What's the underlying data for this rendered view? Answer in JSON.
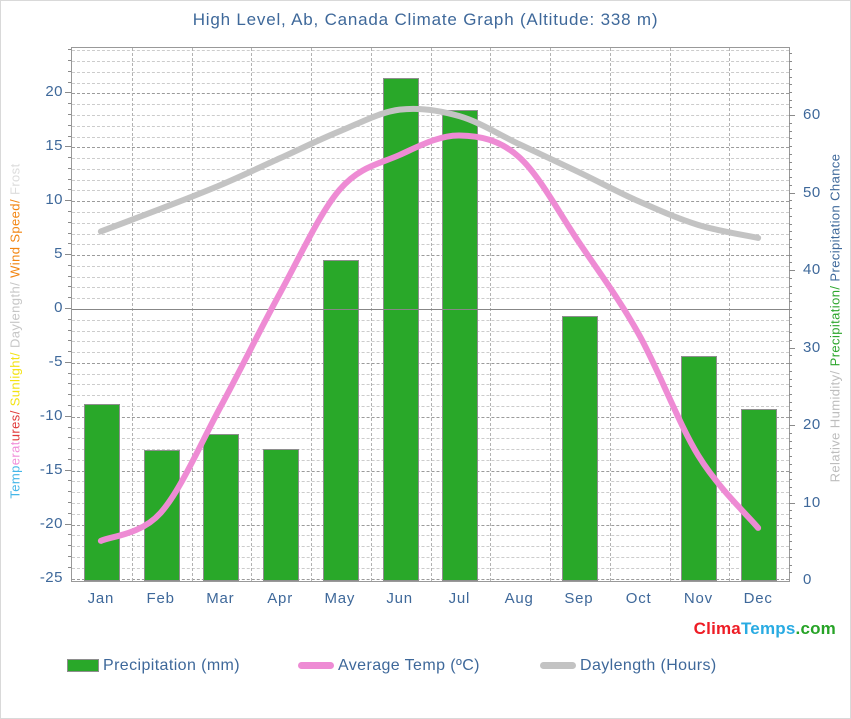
{
  "title": "High Level, Ab, Canada Climate Graph (Altitude: 338 m)",
  "colors": {
    "text_blue": "#3e689a",
    "bar_green": "#29a829",
    "temp_pink": "#ee8bd4",
    "daylength_gray": "#c3c3c3",
    "grid_minor": "#cccccc",
    "grid_major": "#9b9b9b",
    "zero_line": "#878787"
  },
  "left_axis": {
    "ticks": [
      20,
      15,
      10,
      5,
      0,
      -5,
      -10,
      -15,
      -20,
      -25
    ],
    "label_segments": [
      {
        "text": "Temp",
        "color": "#45b6e8"
      },
      {
        "text": "erat",
        "color": "#f18fd9"
      },
      {
        "text": "ures",
        "color": "#e03a3a"
      },
      {
        "text": "/ ",
        "color": "#e03a3a"
      },
      {
        "text": "Sunlight",
        "color": "#f3e312"
      },
      {
        "text": "/ ",
        "color": "#f3e312"
      },
      {
        "text": "Daylength",
        "color": "#c6c6c6"
      },
      {
        "text": "/ ",
        "color": "#c6c6c6"
      },
      {
        "text": "Wind Speed",
        "color": "#f28511"
      },
      {
        "text": "/ ",
        "color": "#f28511"
      },
      {
        "text": "Frost",
        "color": "#dcdcdc"
      }
    ]
  },
  "right_axis": {
    "ticks": [
      0,
      10,
      20,
      30,
      40,
      50,
      60
    ],
    "label_segments": [
      {
        "text": "Relative Humidity",
        "color": "#bdbdbd"
      },
      {
        "text": "/ ",
        "color": "#bdbdbd"
      },
      {
        "text": "Precipitation",
        "color": "#2ca62c"
      },
      {
        "text": "/ ",
        "color": "#2ca62c"
      },
      {
        "text": "Precipitation Chance",
        "color": "#3e689a"
      }
    ]
  },
  "chart_data": {
    "type": "bar",
    "categories": [
      "Jan",
      "Feb",
      "Mar",
      "Apr",
      "May",
      "Jun",
      "Jul",
      "Aug",
      "Sep",
      "Oct",
      "Nov",
      "Dec"
    ],
    "series": [
      {
        "name": "Precipitation (mm)",
        "type": "bar",
        "axis": "right",
        "color": "#29a829",
        "values": [
          22.8,
          16.9,
          19.0,
          17.0,
          41.4,
          65.0,
          60.8,
          0,
          34.2,
          0,
          29.1,
          22.2
        ]
      },
      {
        "name": "Average Temp (ºC)",
        "type": "line",
        "axis": "left",
        "color": "#ee8bd4",
        "values": [
          -21.6,
          -19.0,
          -9.2,
          1.4,
          11.0,
          14.2,
          16.0,
          14.0,
          6.1,
          -2.4,
          -13.7,
          -20.4
        ]
      },
      {
        "name": "Daylength (Hours)",
        "type": "line",
        "axis": "left",
        "color": "#c3c3c3",
        "values": [
          7.1,
          9.2,
          11.4,
          13.9,
          16.4,
          18.4,
          17.8,
          15.2,
          12.6,
          9.9,
          7.7,
          6.5
        ]
      }
    ],
    "title": "High Level, Ab, Canada Climate Graph (Altitude: 338 m)",
    "left_axis_label": "Temperatures/ Sunlight/ Daylength/ Wind Speed/ Frost",
    "right_axis_label": "Relative Humidity/ Precipitation/ Precipitation Chance",
    "left_ylim": [
      -25,
      24.3
    ],
    "right_ylim": [
      0,
      68.8
    ],
    "grid": true,
    "legend_position": "bottom"
  },
  "legend": [
    {
      "label": "Precipitation (mm)",
      "swatch": "bar",
      "color": "#29a829"
    },
    {
      "label": "Average Temp (ºC)",
      "swatch": "line",
      "color": "#ee8bd4"
    },
    {
      "label": "Daylength (Hours)",
      "swatch": "line",
      "color": "#c3c3c3"
    }
  ],
  "watermark": {
    "clima": "Clima",
    "clima_color": "#ee1c25",
    "temps": "Temps",
    "temps_color": "#29abe2",
    "dotcom": ".com",
    "dotcom_color": "#27a327"
  }
}
